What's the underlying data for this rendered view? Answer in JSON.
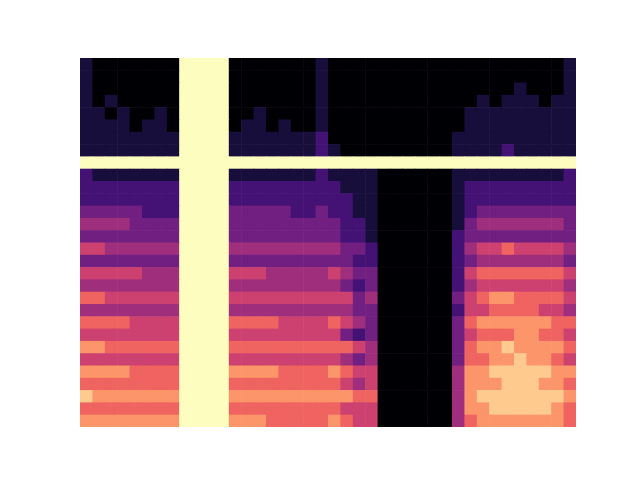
{
  "chart_data": {
    "type": "heatmap",
    "tick_labels": false,
    "cells": [
      [
        1,
        0,
        0,
        0,
        0,
        0,
        0,
        0,
        9,
        9,
        9,
        9,
        0,
        0,
        0,
        0,
        0,
        0,
        0,
        1,
        0,
        0,
        0,
        0,
        0,
        0,
        0,
        0,
        0,
        0,
        0,
        0,
        0,
        0,
        0,
        0,
        0,
        0,
        0,
        1
      ],
      [
        1,
        0,
        0,
        0,
        0,
        0,
        0,
        0,
        9,
        9,
        9,
        9,
        0,
        0,
        0,
        0,
        0,
        0,
        0,
        1,
        0,
        0,
        0,
        0,
        0,
        0,
        0,
        0,
        0,
        0,
        0,
        0,
        0,
        0,
        0,
        0,
        0,
        0,
        0,
        1
      ],
      [
        1,
        0,
        0,
        0,
        0,
        0,
        0,
        0,
        9,
        9,
        9,
        9,
        0,
        0,
        0,
        0,
        0,
        0,
        0,
        1,
        0,
        0,
        0,
        0,
        0,
        0,
        0,
        0,
        0,
        0,
        0,
        0,
        0,
        0,
        0,
        1,
        0,
        0,
        0,
        1
      ],
      [
        1,
        0,
        1,
        0,
        0,
        0,
        0,
        0,
        9,
        9,
        9,
        9,
        0,
        0,
        0,
        0,
        0,
        0,
        0,
        1,
        0,
        0,
        0,
        0,
        0,
        0,
        0,
        0,
        0,
        0,
        0,
        0,
        1,
        0,
        1,
        1,
        1,
        0,
        1,
        1
      ],
      [
        1,
        1,
        0,
        1,
        0,
        0,
        1,
        0,
        9,
        9,
        9,
        9,
        0,
        0,
        1,
        0,
        0,
        0,
        0,
        1,
        0,
        0,
        0,
        0,
        0,
        0,
        0,
        0,
        0,
        0,
        0,
        1,
        1,
        1,
        1,
        1,
        1,
        1,
        1,
        1
      ],
      [
        1,
        1,
        1,
        1,
        0,
        1,
        1,
        0,
        9,
        9,
        9,
        9,
        0,
        1,
        1,
        0,
        1,
        0,
        0,
        1,
        0,
        0,
        0,
        0,
        0,
        0,
        0,
        0,
        0,
        0,
        0,
        1,
        1,
        1,
        1,
        1,
        1,
        1,
        1,
        1
      ],
      [
        1,
        1,
        1,
        1,
        1,
        1,
        1,
        1,
        9,
        9,
        9,
        9,
        1,
        1,
        1,
        1,
        1,
        1,
        1,
        2,
        0,
        0,
        0,
        0,
        0,
        0,
        0,
        0,
        0,
        0,
        1,
        1,
        1,
        1,
        1,
        1,
        1,
        1,
        1,
        1
      ],
      [
        1,
        1,
        1,
        1,
        1,
        1,
        1,
        1,
        9,
        9,
        9,
        9,
        1,
        1,
        1,
        1,
        1,
        1,
        1,
        2,
        1,
        0,
        0,
        0,
        0,
        0,
        0,
        0,
        0,
        0,
        1,
        1,
        1,
        1,
        2,
        1,
        1,
        1,
        1,
        1
      ],
      [
        9,
        9,
        9,
        9,
        9,
        9,
        9,
        9,
        9,
        9,
        9,
        9,
        9,
        9,
        9,
        9,
        9,
        9,
        9,
        9,
        9,
        9,
        9,
        9,
        9,
        9,
        9,
        9,
        9,
        9,
        9,
        9,
        9,
        9,
        9,
        9,
        9,
        9,
        9,
        9
      ],
      [
        2,
        1,
        1,
        1,
        1,
        1,
        1,
        1,
        9,
        9,
        9,
        9,
        1,
        1,
        1,
        1,
        1,
        1,
        1,
        2,
        1,
        1,
        1,
        1,
        0,
        0,
        0,
        0,
        0,
        0,
        1,
        1,
        1,
        1,
        1,
        1,
        1,
        1,
        1,
        2
      ],
      [
        2,
        2,
        2,
        2,
        2,
        2,
        2,
        2,
        9,
        9,
        9,
        9,
        2,
        2,
        2,
        2,
        2,
        2,
        2,
        2,
        2,
        1,
        1,
        1,
        0,
        0,
        0,
        0,
        0,
        0,
        1,
        2,
        2,
        2,
        2,
        2,
        2,
        2,
        2,
        2
      ],
      [
        2,
        2,
        2,
        2,
        2,
        2,
        2,
        2,
        9,
        9,
        9,
        9,
        2,
        2,
        2,
        2,
        2,
        2,
        2,
        2,
        2,
        2,
        1,
        1,
        0,
        0,
        0,
        0,
        0,
        0,
        1,
        2,
        2,
        2,
        2,
        2,
        2,
        2,
        2,
        2
      ],
      [
        3,
        3,
        3,
        3,
        3,
        2,
        2,
        2,
        9,
        9,
        9,
        9,
        3,
        3,
        3,
        3,
        3,
        2,
        2,
        3,
        2,
        2,
        1,
        1,
        0,
        0,
        0,
        0,
        0,
        0,
        1,
        2,
        3,
        3,
        3,
        3,
        3,
        3,
        3,
        3
      ],
      [
        4,
        4,
        4,
        4,
        3,
        3,
        3,
        3,
        9,
        9,
        9,
        9,
        3,
        3,
        3,
        3,
        3,
        3,
        3,
        3,
        3,
        2,
        2,
        1,
        0,
        0,
        0,
        0,
        0,
        0,
        1,
        3,
        4,
        4,
        4,
        4,
        4,
        4,
        4,
        3
      ],
      [
        3,
        3,
        3,
        3,
        3,
        3,
        3,
        3,
        9,
        9,
        9,
        9,
        3,
        3,
        3,
        3,
        3,
        3,
        3,
        3,
        3,
        2,
        2,
        1,
        0,
        0,
        0,
        0,
        0,
        0,
        2,
        3,
        3,
        3,
        3,
        3,
        3,
        3,
        3,
        3
      ],
      [
        5,
        5,
        4,
        4,
        4,
        4,
        4,
        4,
        9,
        9,
        9,
        9,
        4,
        4,
        4,
        4,
        4,
        4,
        4,
        4,
        4,
        3,
        3,
        2,
        0,
        0,
        0,
        0,
        0,
        0,
        2,
        4,
        5,
        5,
        6,
        5,
        5,
        5,
        5,
        4
      ],
      [
        3,
        3,
        3,
        3,
        3,
        3,
        3,
        3,
        9,
        9,
        9,
        9,
        3,
        3,
        3,
        3,
        3,
        3,
        3,
        3,
        3,
        3,
        2,
        2,
        0,
        0,
        0,
        0,
        0,
        0,
        2,
        3,
        4,
        4,
        4,
        4,
        4,
        4,
        4,
        3
      ],
      [
        5,
        5,
        5,
        5,
        5,
        4,
        4,
        4,
        9,
        9,
        9,
        9,
        5,
        5,
        5,
        4,
        4,
        4,
        4,
        4,
        5,
        4,
        3,
        3,
        0,
        0,
        0,
        0,
        0,
        0,
        2,
        5,
        6,
        6,
        6,
        6,
        6,
        6,
        6,
        5
      ],
      [
        4,
        4,
        4,
        4,
        4,
        4,
        4,
        4,
        9,
        9,
        9,
        9,
        4,
        4,
        4,
        4,
        4,
        4,
        4,
        4,
        4,
        3,
        2,
        3,
        0,
        0,
        0,
        0,
        0,
        0,
        2,
        4,
        5,
        5,
        5,
        5,
        5,
        5,
        5,
        4
      ],
      [
        6,
        6,
        5,
        5,
        5,
        5,
        5,
        5,
        9,
        9,
        9,
        9,
        5,
        5,
        5,
        5,
        5,
        5,
        5,
        5,
        5,
        5,
        3,
        4,
        0,
        0,
        0,
        0,
        0,
        0,
        3,
        5,
        6,
        7,
        7,
        6,
        6,
        6,
        6,
        5
      ],
      [
        4,
        4,
        4,
        4,
        4,
        4,
        4,
        4,
        9,
        9,
        9,
        9,
        4,
        4,
        4,
        4,
        4,
        4,
        4,
        4,
        4,
        4,
        3,
        3,
        0,
        0,
        0,
        0,
        0,
        0,
        2,
        5,
        5,
        6,
        6,
        6,
        6,
        5,
        5,
        4
      ],
      [
        6,
        6,
        6,
        6,
        5,
        5,
        5,
        5,
        9,
        9,
        9,
        9,
        6,
        6,
        6,
        6,
        5,
        5,
        5,
        5,
        6,
        5,
        4,
        3,
        0,
        0,
        0,
        0,
        0,
        0,
        3,
        6,
        7,
        7,
        7,
        7,
        7,
        7,
        6,
        6
      ],
      [
        5,
        5,
        5,
        5,
        5,
        5,
        5,
        5,
        9,
        9,
        9,
        9,
        5,
        5,
        5,
        5,
        5,
        5,
        5,
        5,
        5,
        3,
        2,
        3,
        0,
        0,
        0,
        0,
        0,
        0,
        3,
        5,
        6,
        6,
        6,
        7,
        7,
        6,
        6,
        5
      ],
      [
        7,
        7,
        6,
        6,
        6,
        6,
        6,
        6,
        9,
        9,
        9,
        9,
        6,
        6,
        6,
        6,
        6,
        6,
        6,
        6,
        6,
        6,
        5,
        4,
        0,
        0,
        0,
        0,
        0,
        0,
        3,
        6,
        7,
        7,
        8,
        7,
        7,
        7,
        7,
        6
      ],
      [
        5,
        5,
        5,
        5,
        5,
        5,
        5,
        5,
        9,
        9,
        9,
        9,
        5,
        5,
        5,
        5,
        5,
        5,
        5,
        5,
        5,
        4,
        3,
        4,
        0,
        0,
        0,
        0,
        0,
        0,
        3,
        6,
        6,
        7,
        7,
        8,
        7,
        7,
        6,
        5
      ],
      [
        7,
        7,
        7,
        7,
        6,
        6,
        6,
        6,
        9,
        9,
        9,
        9,
        7,
        7,
        7,
        7,
        6,
        6,
        6,
        6,
        7,
        6,
        5,
        5,
        0,
        0,
        0,
        0,
        0,
        0,
        4,
        7,
        7,
        8,
        8,
        8,
        8,
        8,
        7,
        7
      ],
      [
        6,
        6,
        6,
        6,
        6,
        6,
        6,
        6,
        9,
        9,
        9,
        9,
        6,
        6,
        6,
        6,
        6,
        6,
        6,
        6,
        6,
        5,
        4,
        5,
        0,
        0,
        0,
        0,
        0,
        0,
        4,
        7,
        7,
        7,
        8,
        8,
        8,
        7,
        7,
        6
      ],
      [
        8,
        7,
        7,
        7,
        7,
        7,
        7,
        7,
        9,
        9,
        9,
        9,
        7,
        7,
        7,
        7,
        7,
        7,
        7,
        7,
        7,
        7,
        6,
        6,
        0,
        0,
        0,
        0,
        0,
        0,
        4,
        7,
        8,
        8,
        8,
        8,
        8,
        8,
        8,
        7
      ],
      [
        6,
        6,
        6,
        6,
        6,
        6,
        6,
        6,
        9,
        9,
        9,
        9,
        6,
        6,
        6,
        6,
        6,
        6,
        6,
        6,
        6,
        5,
        5,
        5,
        0,
        0,
        0,
        0,
        0,
        0,
        4,
        7,
        7,
        8,
        8,
        8,
        8,
        8,
        7,
        6
      ],
      [
        7,
        7,
        7,
        7,
        7,
        7,
        7,
        7,
        9,
        9,
        9,
        9,
        7,
        7,
        7,
        6,
        6,
        6,
        6,
        6,
        7,
        6,
        5,
        5,
        0,
        0,
        0,
        0,
        0,
        0,
        4,
        6,
        7,
        7,
        7,
        7,
        7,
        7,
        7,
        6
      ]
    ]
  }
}
